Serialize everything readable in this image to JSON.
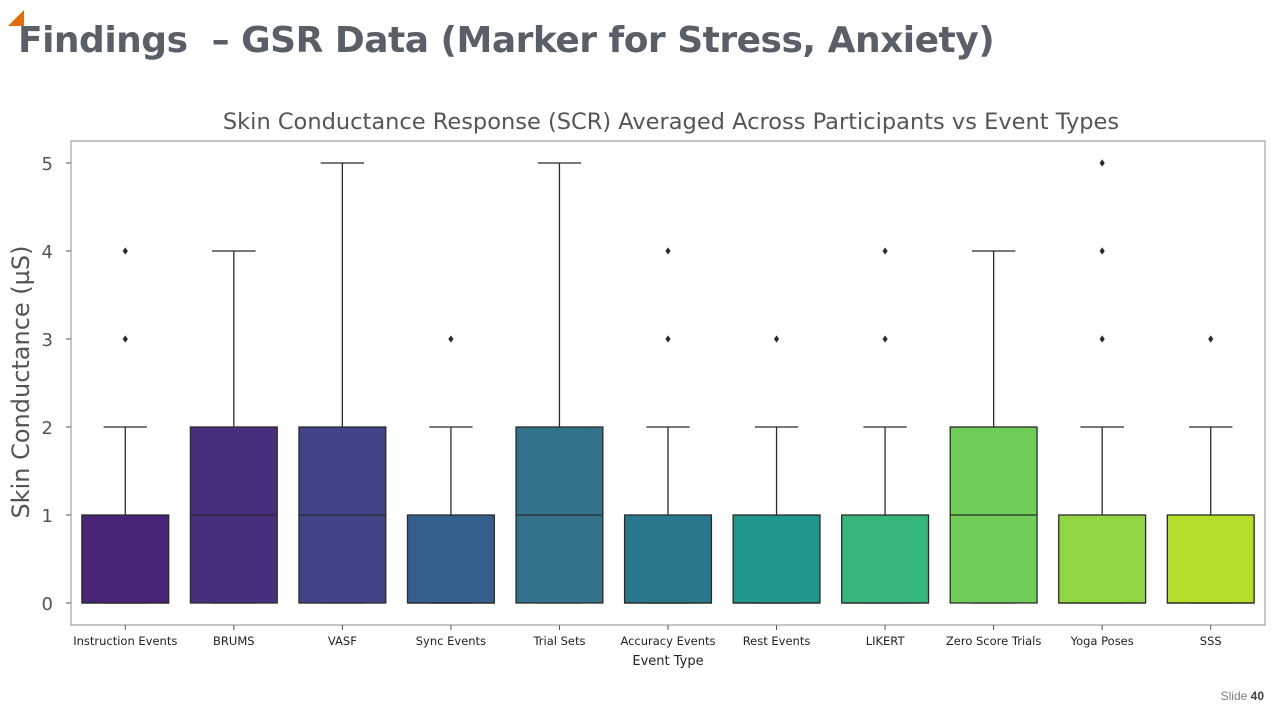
{
  "slide": {
    "title": "Findings  – GSR Data (Marker for Stress, Anxiety)",
    "number_label": "Slide",
    "number": "40"
  },
  "chart_data": {
    "type": "box",
    "title": "Skin Conductance Response (SCR) Averaged Across Participants  vs Event Types",
    "xlabel": "Event Type",
    "ylabel": "Skin Conductance (µS)",
    "ylim": [
      -0.25,
      5.25
    ],
    "yticks": [
      0,
      1,
      2,
      3,
      4,
      5
    ],
    "grid": false,
    "categories": [
      "Instruction Events",
      "BRUMS",
      "VASF",
      "Sync Events",
      "Trial Sets",
      "Accuracy Events",
      "Rest Events",
      "LIKERT",
      "Zero Score Trials",
      "Yoga Poses",
      "SSS"
    ],
    "boxes": [
      {
        "min": 0,
        "q1": 0,
        "median": 0,
        "q3": 1,
        "max": 2,
        "outliers": [
          3,
          4
        ],
        "color": "#482475"
      },
      {
        "min": 0,
        "q1": 0,
        "median": 1,
        "q3": 2,
        "max": 4,
        "outliers": [],
        "color": "#472f7d"
      },
      {
        "min": 0,
        "q1": 0,
        "median": 1,
        "q3": 2,
        "max": 5,
        "outliers": [],
        "color": "#414487"
      },
      {
        "min": 0,
        "q1": 0,
        "median": 0,
        "q3": 1,
        "max": 2,
        "outliers": [
          3
        ],
        "color": "#35608d"
      },
      {
        "min": 0,
        "q1": 0,
        "median": 1,
        "q3": 2,
        "max": 5,
        "outliers": [],
        "color": "#33728a"
      },
      {
        "min": 0,
        "q1": 0,
        "median": 0,
        "q3": 1,
        "max": 2,
        "outliers": [
          3,
          4
        ],
        "color": "#2a788e"
      },
      {
        "min": 0,
        "q1": 0,
        "median": 0,
        "q3": 1,
        "max": 2,
        "outliers": [
          3
        ],
        "color": "#1f988b"
      },
      {
        "min": 0,
        "q1": 0,
        "median": 0,
        "q3": 1,
        "max": 2,
        "outliers": [
          3,
          4
        ],
        "color": "#35b779"
      },
      {
        "min": 0,
        "q1": 0,
        "median": 1,
        "q3": 2,
        "max": 4,
        "outliers": [],
        "color": "#6ece58"
      },
      {
        "min": 0,
        "q1": 0,
        "median": 0,
        "q3": 1,
        "max": 2,
        "outliers": [
          3,
          4,
          5
        ],
        "color": "#90d743"
      },
      {
        "min": 0,
        "q1": 0,
        "median": 0,
        "q3": 1,
        "max": 2,
        "outliers": [
          3
        ],
        "color": "#b5de2b"
      }
    ],
    "outline_color": "#2b2b2b"
  }
}
